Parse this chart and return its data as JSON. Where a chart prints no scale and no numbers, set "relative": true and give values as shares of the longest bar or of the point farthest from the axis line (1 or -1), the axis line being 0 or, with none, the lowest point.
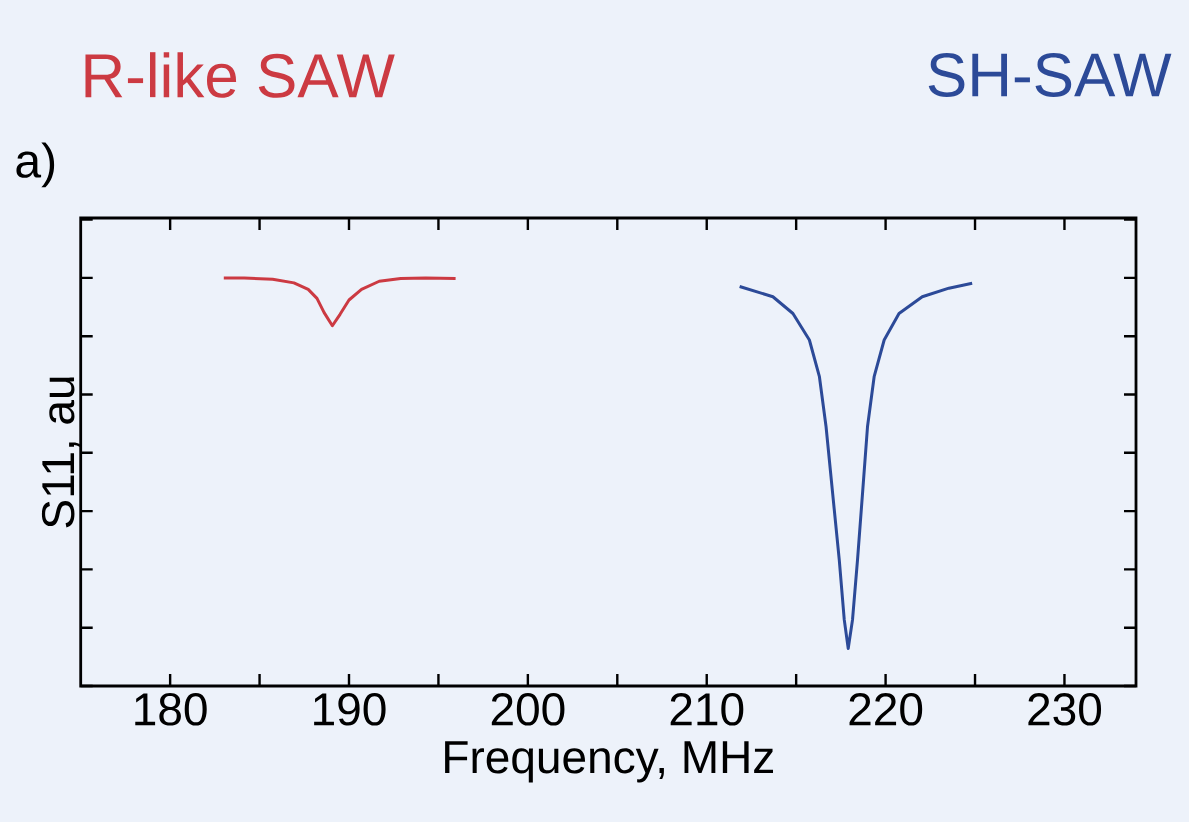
{
  "chart_data": {
    "type": "line",
    "relative": true,
    "xlabel": "Frequency, MHz",
    "ylabel": "S11, au",
    "annotations": [
      "a)"
    ],
    "xlim": [
      175,
      234
    ],
    "xticks": [
      180,
      {
        "value": 185,
        "label": null
      },
      190,
      {
        "value": 195,
        "label": null
      },
      200,
      {
        "value": 205,
        "label": null
      },
      210,
      {
        "value": 215,
        "label": null
      },
      220,
      {
        "value": 225,
        "label": null
      },
      230
    ],
    "grid": false,
    "series": [
      {
        "name": "R-like SAW",
        "color": "#cc3a42",
        "x": [
          183.0,
          184.14,
          185.73,
          186.92,
          187.72,
          188.21,
          188.61,
          189.07,
          189.5,
          190.0,
          190.7,
          191.69,
          192.89,
          194.28,
          195.96
        ],
        "values": [
          1.0,
          1.0,
          0.997,
          0.988,
          0.972,
          0.95,
          0.915,
          0.883,
          0.911,
          0.946,
          0.972,
          0.992,
          0.999,
          1.0,
          0.999
        ]
      },
      {
        "name": "SH-SAW",
        "color": "#2c4a98",
        "x": [
          211.84,
          213.7,
          214.82,
          215.74,
          216.3,
          216.67,
          217.04,
          217.41,
          217.69,
          217.91,
          218.15,
          218.43,
          218.71,
          218.99,
          219.36,
          219.92,
          220.75,
          222.05,
          223.54,
          224.84
        ],
        "values": [
          0.979,
          0.954,
          0.913,
          0.848,
          0.758,
          0.636,
          0.472,
          0.309,
          0.162,
          0.092,
          0.162,
          0.309,
          0.472,
          0.636,
          0.758,
          0.848,
          0.913,
          0.954,
          0.975,
          0.987
        ]
      }
    ]
  }
}
